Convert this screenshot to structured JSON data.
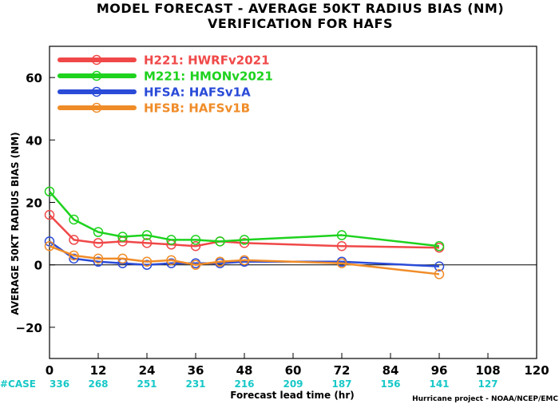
{
  "chart_data": {
    "type": "line",
    "title": "MODEL FORECAST - AVERAGE 50KT RADIUS BIAS (NM)",
    "subtitle": "VERIFICATION FOR HAFS",
    "xlabel": "Forecast lead time (hr)",
    "ylabel": "AVERAGE 50KT RADIUS BIAS (NM)",
    "xlim": [
      0,
      120
    ],
    "ylim": [
      -30,
      70
    ],
    "xticks": [
      0,
      12,
      24,
      36,
      48,
      60,
      72,
      84,
      96,
      108,
      120
    ],
    "yticks": [
      -20,
      0,
      20,
      40,
      60
    ],
    "grid": false,
    "legend_position": "top-left",
    "zero_line": true,
    "case_label": "#CASE",
    "case_label_color": "#18c8c8",
    "cases": [
      {
        "x": 0,
        "n": "336"
      },
      {
        "x": 12,
        "n": "268"
      },
      {
        "x": 24,
        "n": "251"
      },
      {
        "x": 36,
        "n": "231"
      },
      {
        "x": 48,
        "n": "216"
      },
      {
        "x": 60,
        "n": "209"
      },
      {
        "x": 72,
        "n": "187"
      },
      {
        "x": 84,
        "n": "156"
      },
      {
        "x": 96,
        "n": "141"
      },
      {
        "x": 108,
        "n": "127"
      }
    ],
    "credit": "Hurricane project - NOAA/NCEP/EMC",
    "series": [
      {
        "name": "H221: HWRFv2021",
        "color": "#f04848",
        "x": [
          0,
          6,
          12,
          18,
          24,
          30,
          36,
          42,
          48,
          72,
          96
        ],
        "y": [
          16,
          8,
          7,
          7.5,
          7,
          6.5,
          6,
          7.5,
          7,
          6,
          5.5
        ]
      },
      {
        "name": "M221: HMONv2021",
        "color": "#1ed21e",
        "x": [
          0,
          6,
          12,
          18,
          24,
          30,
          36,
          42,
          48,
          72,
          96
        ],
        "y": [
          23.5,
          14.5,
          10.5,
          9,
          9.5,
          8,
          8,
          7.5,
          8,
          9.5,
          6
        ]
      },
      {
        "name": "HFSA: HAFSv1A",
        "color": "#2a4bd8",
        "x": [
          0,
          6,
          12,
          18,
          24,
          30,
          36,
          42,
          48,
          72,
          96
        ],
        "y": [
          7.5,
          2,
          1,
          0.5,
          0,
          0.5,
          0.5,
          0.5,
          1,
          1,
          -0.5
        ]
      },
      {
        "name": "HFSB: HAFSv1B",
        "color": "#f08c28",
        "x": [
          0,
          6,
          12,
          18,
          24,
          30,
          36,
          42,
          48,
          72,
          96
        ],
        "y": [
          6,
          3,
          2,
          2,
          1,
          1.5,
          0,
          1,
          1.5,
          0.5,
          -3
        ]
      }
    ]
  }
}
